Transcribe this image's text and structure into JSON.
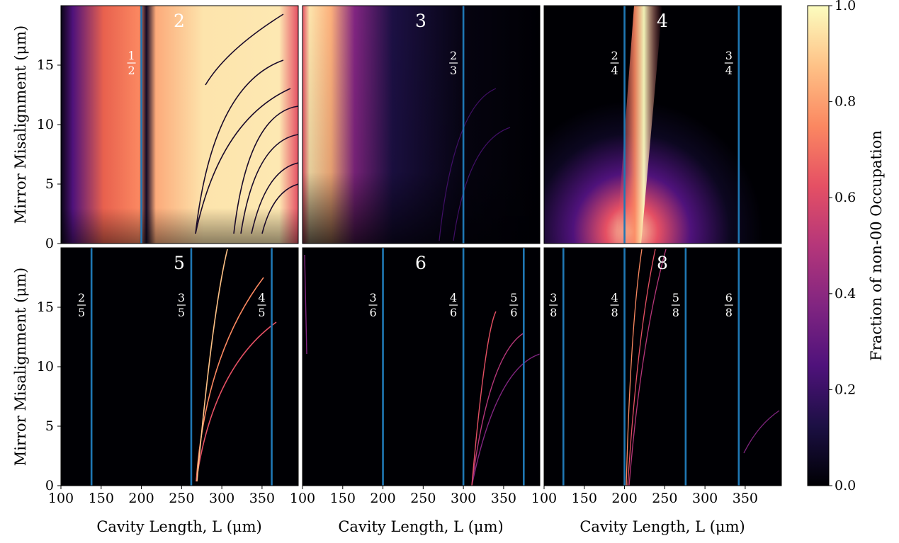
{
  "chart_data": {
    "type": "heatmap",
    "colorbar": {
      "label": "Fraction of non-00 Occupation",
      "range": [
        0,
        1
      ],
      "ticks": [
        0.0,
        0.2,
        0.4,
        0.6,
        0.8,
        1.0
      ],
      "tick_labels": [
        "0.0",
        "0.2",
        "0.4",
        "0.6",
        "0.8",
        "1.0"
      ],
      "colormap": "magma",
      "colors": [
        "#000004",
        "#1c1044",
        "#4f127b",
        "#812581",
        "#b5367a",
        "#e55064",
        "#fb8861",
        "#fec287",
        "#fcfdbf"
      ]
    },
    "xlabel": "Cavity Length, L (μm)",
    "ylabel": "Mirror Misalignment (μm)",
    "xlim": [
      100,
      395
    ],
    "ylim": [
      0,
      20
    ],
    "xticks": [
      100,
      150,
      200,
      250,
      300,
      350
    ],
    "yticks": [
      0,
      5,
      10,
      15
    ],
    "marker_line_color": "#1f77b4",
    "panels": [
      {
        "label": "2",
        "lines": [
          {
            "x": 200,
            "numerator": "1",
            "denominator": "2"
          }
        ]
      },
      {
        "label": "3",
        "lines": [
          {
            "x": 300,
            "numerator": "2",
            "denominator": "3"
          }
        ]
      },
      {
        "label": "4",
        "lines": [
          {
            "x": 200,
            "numerator": "2",
            "denominator": "4"
          },
          {
            "x": 342,
            "numerator": "3",
            "denominator": "4"
          }
        ]
      },
      {
        "label": "5",
        "lines": [
          {
            "x": 138,
            "numerator": "2",
            "denominator": "5"
          },
          {
            "x": 262,
            "numerator": "3",
            "denominator": "5"
          },
          {
            "x": 362,
            "numerator": "4",
            "denominator": "5"
          }
        ]
      },
      {
        "label": "6",
        "lines": [
          {
            "x": 200,
            "numerator": "3",
            "denominator": "6"
          },
          {
            "x": 300,
            "numerator": "4",
            "denominator": "6"
          },
          {
            "x": 375,
            "numerator": "5",
            "denominator": "6"
          }
        ]
      },
      {
        "label": "8",
        "lines": [
          {
            "x": 124,
            "numerator": "3",
            "denominator": "8"
          },
          {
            "x": 200,
            "numerator": "4",
            "denominator": "8"
          },
          {
            "x": 276,
            "numerator": "5",
            "denominator": "8"
          },
          {
            "x": 342,
            "numerator": "6",
            "denominator": "8"
          }
        ]
      }
    ]
  }
}
